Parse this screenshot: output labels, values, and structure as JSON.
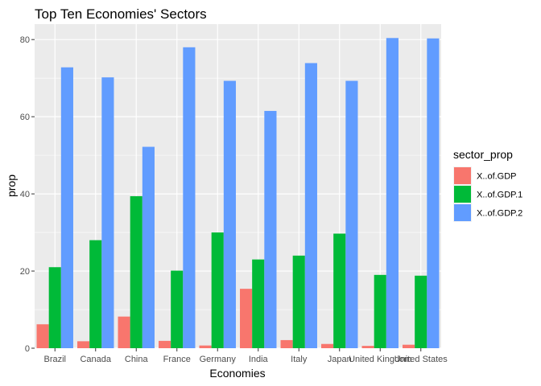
{
  "chart_data": {
    "type": "bar",
    "title": "Top Ten Economies' Sectors",
    "xlabel": "Economies",
    "ylabel": "prop",
    "categories": [
      "Brazil",
      "Canada",
      "China",
      "France",
      "Germany",
      "India",
      "Italy",
      "Japan",
      "United Kingdom",
      "United States"
    ],
    "series": [
      {
        "name": "X..of.GDP",
        "color": "#F8766D",
        "values": [
          6.2,
          1.8,
          8.2,
          1.9,
          0.7,
          15.4,
          2.1,
          1.1,
          0.6,
          0.9
        ]
      },
      {
        "name": "X..of.GDP.1",
        "color": "#00BA38",
        "values": [
          21.0,
          28.0,
          39.4,
          20.1,
          30.0,
          23.0,
          24.0,
          29.7,
          19.0,
          18.8
        ]
      },
      {
        "name": "X..of.GDP.2",
        "color": "#619CFF",
        "values": [
          72.8,
          70.2,
          52.2,
          78.0,
          69.3,
          61.5,
          73.9,
          69.3,
          80.4,
          80.3
        ]
      }
    ],
    "ylim": [
      0,
      84
    ],
    "yticks": [
      0,
      20,
      40,
      60,
      80
    ],
    "grid": true,
    "legend": {
      "title": "sector_prop",
      "placement": "right"
    },
    "background": "#EBEBEB"
  }
}
